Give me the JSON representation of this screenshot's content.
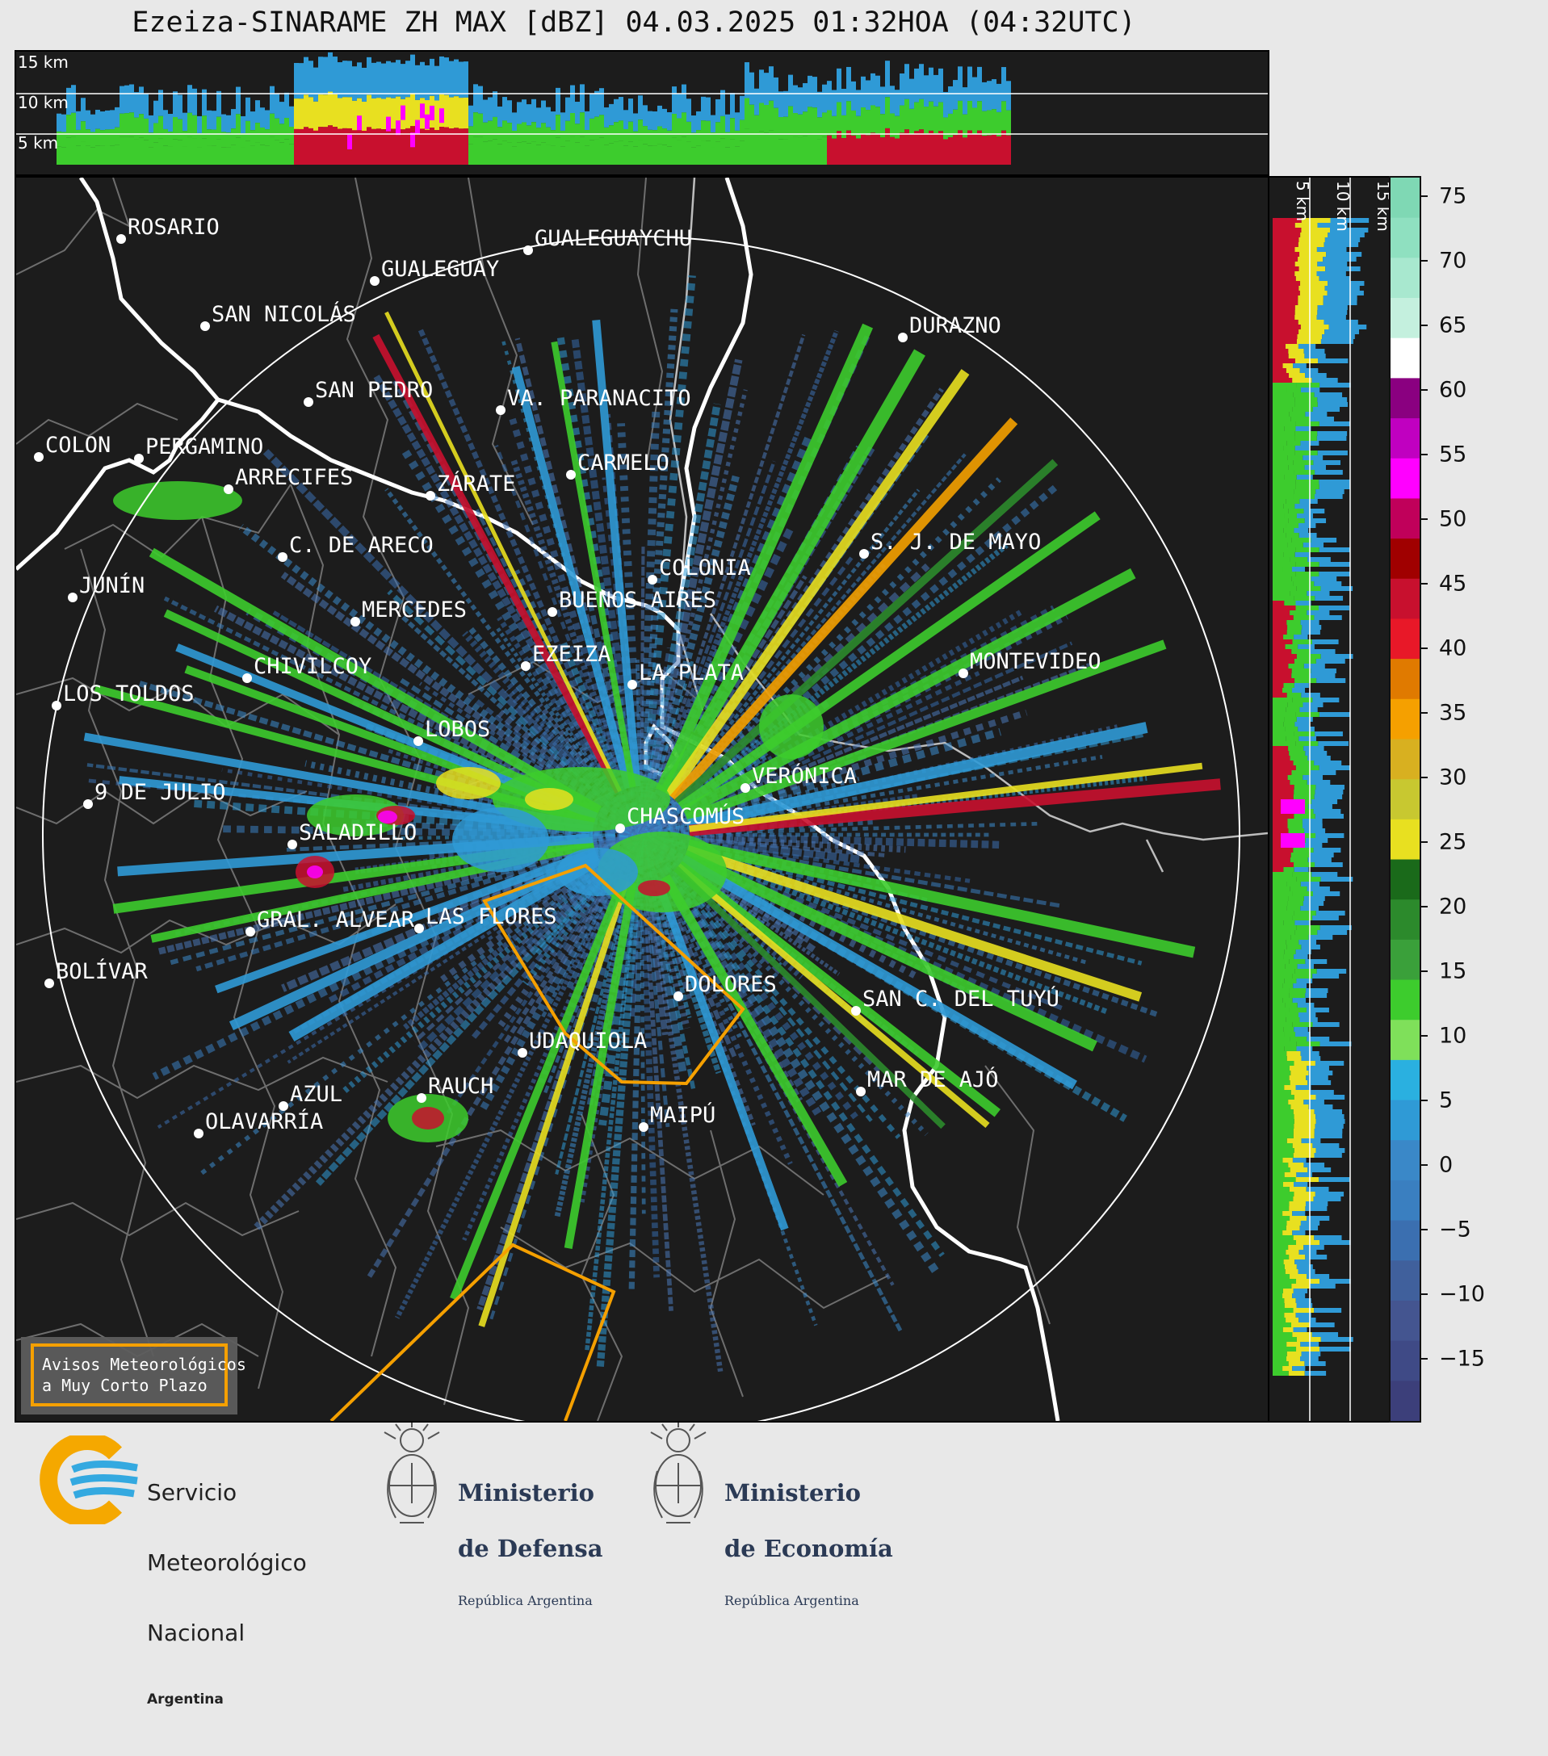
{
  "title": "Ezeiza-SINARAME ZH MAX [dBZ] 04.03.2025 01:32HOA (04:32UTC)",
  "top_panel": {
    "heights": [
      "15 km",
      "10 km",
      "5 km"
    ]
  },
  "side_panel": {
    "heights": [
      "5 km",
      "10 km",
      "15 km"
    ]
  },
  "colorbar": {
    "ticks": [
      "75",
      "70",
      "65",
      "60",
      "55",
      "50",
      "45",
      "40",
      "35",
      "30",
      "25",
      "20",
      "15",
      "10",
      "5",
      "0",
      "−5",
      "−10",
      "−15"
    ]
  },
  "cities": [
    {
      "name": "ROSARIO"
    },
    {
      "name": "GUALEGUAYCHU"
    },
    {
      "name": "GUALEGUAY"
    },
    {
      "name": "SAN NICOLÁS"
    },
    {
      "name": "DURAZNO"
    },
    {
      "name": "SAN PEDRO"
    },
    {
      "name": "VA. PARANACITO"
    },
    {
      "name": "COLON"
    },
    {
      "name": "PERGAMINO"
    },
    {
      "name": "CARMELO"
    },
    {
      "name": "ARRECIFES"
    },
    {
      "name": "ZÁRATE"
    },
    {
      "name": "S. J. DE MAYO"
    },
    {
      "name": "C. DE ARECO"
    },
    {
      "name": "COLONIA"
    },
    {
      "name": "JUNÍN"
    },
    {
      "name": "BUENOS AIRES"
    },
    {
      "name": "MERCEDES"
    },
    {
      "name": "EZEIZA"
    },
    {
      "name": "MONTEVIDEO"
    },
    {
      "name": "CHIVILCOY"
    },
    {
      "name": "LA PLATA"
    },
    {
      "name": "LOS TOLDOS"
    },
    {
      "name": "LOBOS"
    },
    {
      "name": "VERÓNICA"
    },
    {
      "name": "9 DE JULIO"
    },
    {
      "name": "CHASCOMÚS"
    },
    {
      "name": "SALADILLO"
    },
    {
      "name": "GRAL. ALVEAR"
    },
    {
      "name": "LAS FLORES"
    },
    {
      "name": "BOLÍVAR"
    },
    {
      "name": "DOLORES"
    },
    {
      "name": "SAN C. DEL TUYÚ"
    },
    {
      "name": "UDAQUIOLA"
    },
    {
      "name": "MAR DE AJÓ"
    },
    {
      "name": "AZUL"
    },
    {
      "name": "RAUCH"
    },
    {
      "name": "MAIPÚ"
    },
    {
      "name": "OLAVARRÍA"
    }
  ],
  "legend_box": {
    "line1": "Avisos Meteorológicos",
    "line2": "a Muy Corto Plazo",
    "color": "#f5a000"
  },
  "footer": {
    "smn": {
      "line1": "Servicio",
      "line2": "Meteorológico",
      "line3": "Nacional",
      "line4": "Argentina"
    },
    "defensa": {
      "line1": "Ministerio",
      "line2": "de Defensa",
      "line3": "República Argentina"
    },
    "economia": {
      "line1": "Ministerio",
      "line2": "de Economía",
      "line3": "República Argentina"
    }
  }
}
